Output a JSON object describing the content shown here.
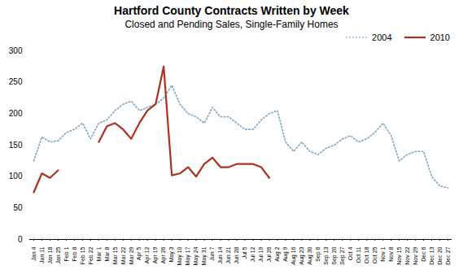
{
  "chart_data": {
    "type": "line",
    "title": "Hartford County Contracts Written by Week",
    "subtitle": "Closed and Pending Sales, Single-Family Homes",
    "categories": [
      "Jan 4",
      "Jan 11",
      "Jan 18",
      "Jan 25",
      "Feb 1",
      "Feb 8",
      "Feb 15",
      "Feb 22",
      "Mar 1",
      "Mar 8",
      "Mar 15",
      "Mar 22",
      "Mar 29",
      "Apr 5",
      "Apr 12",
      "Apr 19",
      "Apr 26",
      "May 3",
      "May 10",
      "May 17",
      "May 24",
      "May 31",
      "Jun 7",
      "Jun 14",
      "Jun 21",
      "Jun 28",
      "Jul 5",
      "Jul 12",
      "Jul 19",
      "Jul 26",
      "Aug 2",
      "Aug 9",
      "Aug 16",
      "Aug 23",
      "Aug 30",
      "Sep 6",
      "Sep 13",
      "Sep 20",
      "Sep 27",
      "Oct 4",
      "Oct 11",
      "Oct 18",
      "Oct 25",
      "Nov 1",
      "Nov 8",
      "Nov 15",
      "Nov 22",
      "Nov 29",
      "Dec 6",
      "Dec 13",
      "Dec 20",
      "Dec 27"
    ],
    "series": [
      {
        "name": "2004",
        "color": "#7aa5c8",
        "line_style": "dotted",
        "values": [
          125,
          163,
          155,
          157,
          170,
          175,
          185,
          160,
          185,
          190,
          205,
          215,
          220,
          205,
          210,
          215,
          225,
          245,
          215,
          200,
          195,
          185,
          210,
          195,
          195,
          185,
          175,
          175,
          190,
          200,
          205,
          155,
          140,
          155,
          140,
          135,
          145,
          150,
          160,
          165,
          155,
          160,
          170,
          185,
          165,
          125,
          135,
          140,
          140,
          100,
          85,
          82
        ]
      },
      {
        "name": "2010",
        "color": "#b03020",
        "line_style": "solid",
        "values": [
          75,
          105,
          98,
          110,
          null,
          null,
          null,
          null,
          155,
          180,
          185,
          175,
          160,
          185,
          205,
          215,
          275,
          102,
          105,
          115,
          100,
          120,
          130,
          115,
          115,
          120,
          120,
          120,
          115,
          98,
          null,
          null,
          null,
          null,
          null,
          null,
          null,
          null,
          null,
          null,
          null,
          null,
          null,
          null,
          null,
          null,
          null,
          null,
          null,
          null,
          null,
          null
        ]
      }
    ],
    "ylim": [
      0,
      300
    ],
    "yticks": [
      0,
      50,
      100,
      150,
      200,
      250,
      300
    ],
    "legend": "upper right",
    "grid": false
  }
}
